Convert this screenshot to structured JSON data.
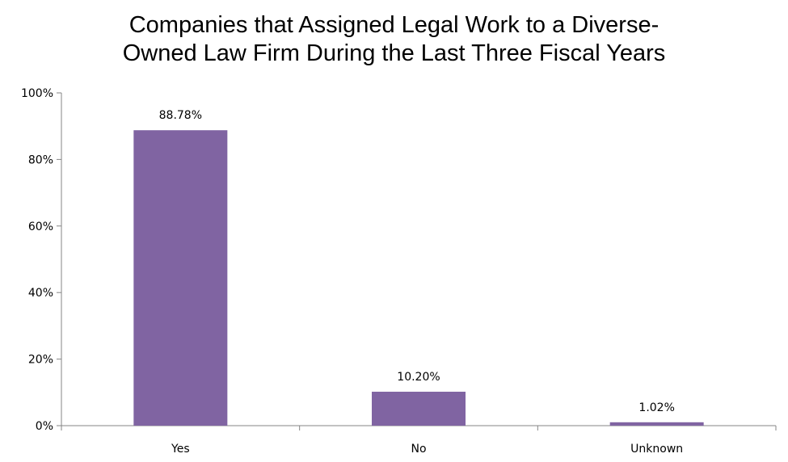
{
  "chart_data": {
    "type": "bar",
    "title_lines": [
      "Companies that Assigned Legal Work to a Diverse-",
      "Owned Law Firm During the Last Three Fiscal Years"
    ],
    "categories": [
      "Yes",
      "No",
      "Unknown"
    ],
    "values": [
      88.78,
      10.2,
      1.02
    ],
    "data_labels": [
      "88.78%",
      "10.20%",
      "1.02%"
    ],
    "ylim": [
      0,
      100
    ],
    "yticks": [
      0,
      20,
      40,
      60,
      80,
      100
    ],
    "ytick_labels": [
      "0%",
      "20%",
      "40%",
      "60%",
      "80%",
      "100%"
    ],
    "xlabel": "",
    "ylabel": "",
    "grid": false,
    "legend": "none",
    "bar_color": "#8064a2"
  }
}
